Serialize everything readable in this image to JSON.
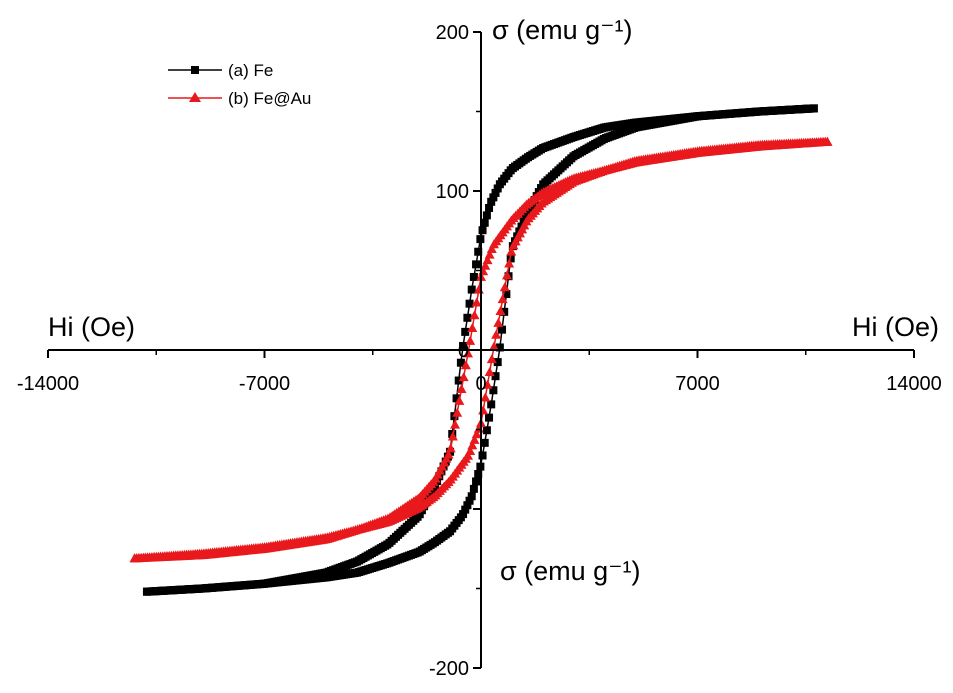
{
  "chart_data": {
    "type": "scatter",
    "xlabel": "Hi (Oe)",
    "ylabel": "σ (emu g⁻¹)",
    "x_ticks": [
      -14000,
      -7000,
      0,
      7000,
      14000
    ],
    "y_ticks": [
      -200,
      0,
      100,
      200
    ],
    "xlim": [
      -14000,
      14000
    ],
    "ylim": [
      -200,
      200
    ],
    "legend_position": "top-left",
    "series": [
      {
        "name": "(a) Fe",
        "color": "#000000",
        "marker": "square",
        "saturation": 152,
        "remanence": 72,
        "coercivity": 600,
        "x_range": [
          -10800,
          10800
        ],
        "x": [
          -10800,
          -9000,
          -7000,
          -5000,
          -4000,
          -3000,
          -2000,
          -1500,
          -1000,
          -600,
          -300,
          0,
          300,
          600,
          1000,
          1500,
          2000,
          3000,
          4000,
          5000,
          7000,
          9000,
          10800
        ],
        "y_descending": [
          -152,
          -150,
          -147,
          -140,
          -133,
          -122,
          -104,
          -86,
          -64,
          0,
          38,
          72,
          92,
          104,
          114,
          121,
          127,
          134,
          140,
          143,
          147,
          150,
          152
        ],
        "y_ascending": [
          -152,
          -150,
          -147,
          -143,
          -140,
          -134,
          -127,
          -121,
          -114,
          -104,
          -92,
          -72,
          -38,
          0,
          64,
          86,
          104,
          122,
          133,
          140,
          147,
          150,
          152
        ]
      },
      {
        "name": "(b) Fe@Au",
        "color": "#e8191c",
        "marker": "triangle",
        "saturation": 131,
        "remanence": 46,
        "coercivity": 400,
        "x_range": [
          -11200,
          11200
        ],
        "x": [
          -11200,
          -9000,
          -7000,
          -5000,
          -4000,
          -3000,
          -2000,
          -1500,
          -1000,
          -400,
          0,
          400,
          1000,
          1500,
          2000,
          3000,
          4000,
          5000,
          7000,
          9000,
          11200
        ],
        "y_descending": [
          -131,
          -129,
          -125,
          -119,
          -113,
          -106,
          -93,
          -82,
          -64,
          0,
          46,
          66,
          82,
          92,
          99,
          108,
          113,
          118,
          124,
          128,
          131
        ],
        "y_ascending": [
          -131,
          -128,
          -124,
          -118,
          -113,
          -108,
          -99,
          -92,
          -82,
          -66,
          -46,
          0,
          64,
          82,
          93,
          106,
          113,
          119,
          125,
          129,
          131
        ]
      }
    ]
  }
}
